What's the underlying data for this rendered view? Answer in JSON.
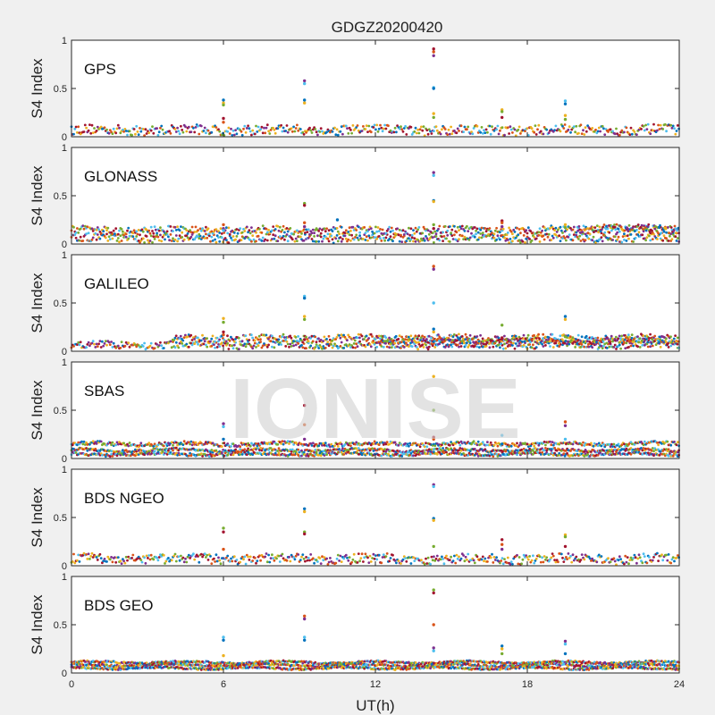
{
  "chart_data": {
    "type": "scatter",
    "title": "GDGZ20200420",
    "xlabel": "UT(h)",
    "ylabel": "S4 Index",
    "xlim": [
      0,
      24
    ],
    "ylim": [
      0,
      1
    ],
    "xticks": [
      "0",
      "6",
      "12",
      "18",
      "24"
    ],
    "yticks": [
      "0",
      "0.5",
      "1"
    ],
    "grid": false,
    "watermark": "IONISE",
    "series_colors": [
      "#0072BD",
      "#D95319",
      "#EDB120",
      "#7E2F8E",
      "#77AC30",
      "#4DBEEE",
      "#A2142F"
    ],
    "panels": [
      {
        "name": "GPS",
        "background": [
          [
            0,
            0.02,
            0.12
          ]
        ],
        "spikes": [
          {
            "x": 6.0,
            "values": [
              0.38,
              0.35,
              0.33,
              0.19,
              0.15
            ]
          },
          {
            "x": 9.2,
            "values": [
              0.58,
              0.55,
              0.38,
              0.35
            ]
          },
          {
            "x": 14.3,
            "values": [
              0.91,
              0.88,
              0.84,
              0.51,
              0.5,
              0.24,
              0.2
            ]
          },
          {
            "x": 17.0,
            "values": [
              0.28,
              0.26,
              0.2
            ]
          },
          {
            "x": 19.5,
            "values": [
              0.37,
              0.34,
              0.22,
              0.18
            ]
          }
        ]
      },
      {
        "name": "GLONASS",
        "background": [
          [
            0,
            0.02,
            0.1
          ],
          [
            0,
            0.1,
            0.18
          ],
          [
            20,
            0.12,
            0.2
          ]
        ],
        "spikes": [
          {
            "x": 6.0,
            "values": [
              0.2,
              0.16,
              0.14
            ]
          },
          {
            "x": 9.2,
            "values": [
              0.42,
              0.4,
              0.22,
              0.18
            ]
          },
          {
            "x": 10.5,
            "values": [
              0.25
            ]
          },
          {
            "x": 14.3,
            "values": [
              0.74,
              0.71,
              0.45,
              0.44,
              0.2,
              0.16
            ]
          },
          {
            "x": 17.0,
            "values": [
              0.24,
              0.22,
              0.18
            ]
          },
          {
            "x": 19.5,
            "values": [
              0.2,
              0.17
            ]
          }
        ]
      },
      {
        "name": "GALILEO",
        "background": [
          [
            0,
            0.03,
            0.1
          ],
          [
            4,
            0.1,
            0.17
          ],
          [
            12,
            0.08,
            0.13
          ]
        ],
        "spikes": [
          {
            "x": 6.0,
            "values": [
              0.34,
              0.3,
              0.2,
              0.17
            ]
          },
          {
            "x": 9.2,
            "values": [
              0.57,
              0.55,
              0.36,
              0.33,
              0.12
            ]
          },
          {
            "x": 14.3,
            "values": [
              0.88,
              0.85,
              0.5,
              0.23,
              0.2
            ]
          },
          {
            "x": 17.0,
            "values": [
              0.27,
              0.14
            ]
          },
          {
            "x": 19.5,
            "values": [
              0.36,
              0.33,
              0.15
            ]
          }
        ]
      },
      {
        "name": "SBAS",
        "background": [
          [
            0,
            0.13,
            0.17
          ],
          [
            0,
            0.07,
            0.1
          ],
          [
            0,
            0.03,
            0.06
          ]
        ],
        "spikes": [
          {
            "x": 6.0,
            "values": [
              0.36,
              0.33,
              0.2
            ]
          },
          {
            "x": 9.2,
            "values": [
              0.55,
              0.35,
              0.2
            ]
          },
          {
            "x": 14.3,
            "values": [
              0.85,
              0.5,
              0.22,
              0.2
            ]
          },
          {
            "x": 17.0,
            "values": [
              0.24,
              0.15
            ]
          },
          {
            "x": 19.5,
            "values": [
              0.38,
              0.34,
              0.2
            ]
          }
        ]
      },
      {
        "name": "BDS NGEO",
        "background": [
          [
            0,
            0.02,
            0.12
          ]
        ],
        "spikes": [
          {
            "x": 6.0,
            "values": [
              0.39,
              0.35,
              0.17
            ]
          },
          {
            "x": 9.2,
            "values": [
              0.59,
              0.56,
              0.35,
              0.33
            ]
          },
          {
            "x": 14.3,
            "values": [
              0.84,
              0.82,
              0.49,
              0.47,
              0.2
            ]
          },
          {
            "x": 17.0,
            "values": [
              0.27,
              0.22,
              0.17
            ]
          },
          {
            "x": 19.5,
            "values": [
              0.32,
              0.3,
              0.2
            ]
          }
        ]
      },
      {
        "name": "BDS GEO",
        "background": [
          [
            0,
            0.1,
            0.12
          ],
          [
            0,
            0.07,
            0.09
          ],
          [
            0,
            0.04,
            0.06
          ]
        ],
        "spikes": [
          {
            "x": 6.0,
            "values": [
              0.37,
              0.34,
              0.18
            ]
          },
          {
            "x": 9.2,
            "values": [
              0.59,
              0.56,
              0.37,
              0.34
            ]
          },
          {
            "x": 14.3,
            "values": [
              0.86,
              0.83,
              0.5,
              0.26,
              0.23
            ]
          },
          {
            "x": 17.0,
            "values": [
              0.28,
              0.25,
              0.2
            ]
          },
          {
            "x": 19.5,
            "values": [
              0.33,
              0.3,
              0.2
            ]
          }
        ]
      }
    ]
  }
}
